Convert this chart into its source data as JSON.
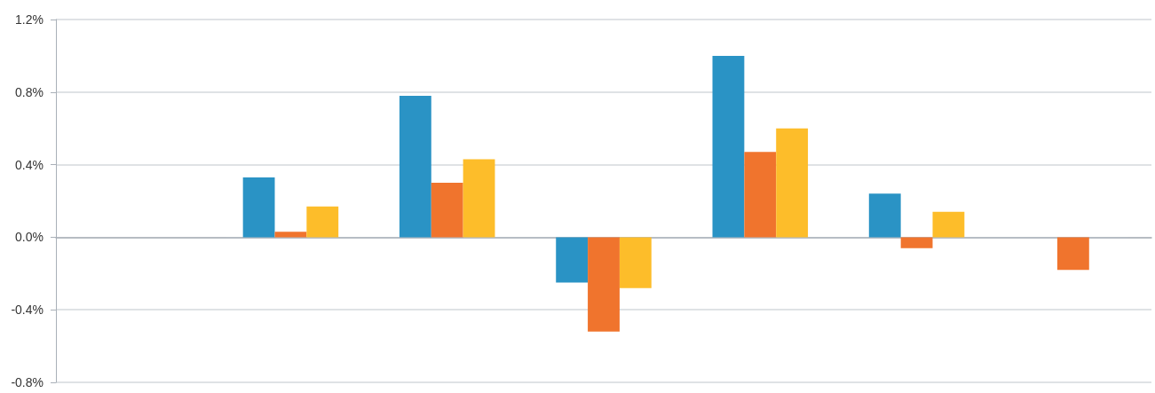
{
  "chart_data": {
    "type": "bar",
    "categories": [
      null,
      null,
      null,
      null,
      null,
      null,
      null
    ],
    "series": [
      {
        "color": "#2a93c5",
        "values": [
          null,
          0.33,
          0.78,
          -0.25,
          1.0,
          0.24,
          null
        ]
      },
      {
        "color": "#f0742d",
        "values": [
          null,
          0.03,
          0.3,
          -0.52,
          0.47,
          -0.06,
          -0.18
        ]
      },
      {
        "color": "#fdbd2a",
        "values": [
          null,
          0.17,
          0.43,
          -0.28,
          0.6,
          0.14,
          null
        ]
      }
    ],
    "ylim": [
      -0.8,
      1.2
    ],
    "yticks": [
      {
        "value": -0.8,
        "label": "-0.8%"
      },
      {
        "value": -0.4,
        "label": "-0.4%"
      },
      {
        "value": 0,
        "label": "0.0%"
      },
      {
        "value": 0.4,
        "label": "0.4%"
      },
      {
        "value": 0.8,
        "label": "0.8%"
      },
      {
        "value": 1.2,
        "label": "1.2%"
      }
    ],
    "grid": "y",
    "tick_labels": "y"
  }
}
